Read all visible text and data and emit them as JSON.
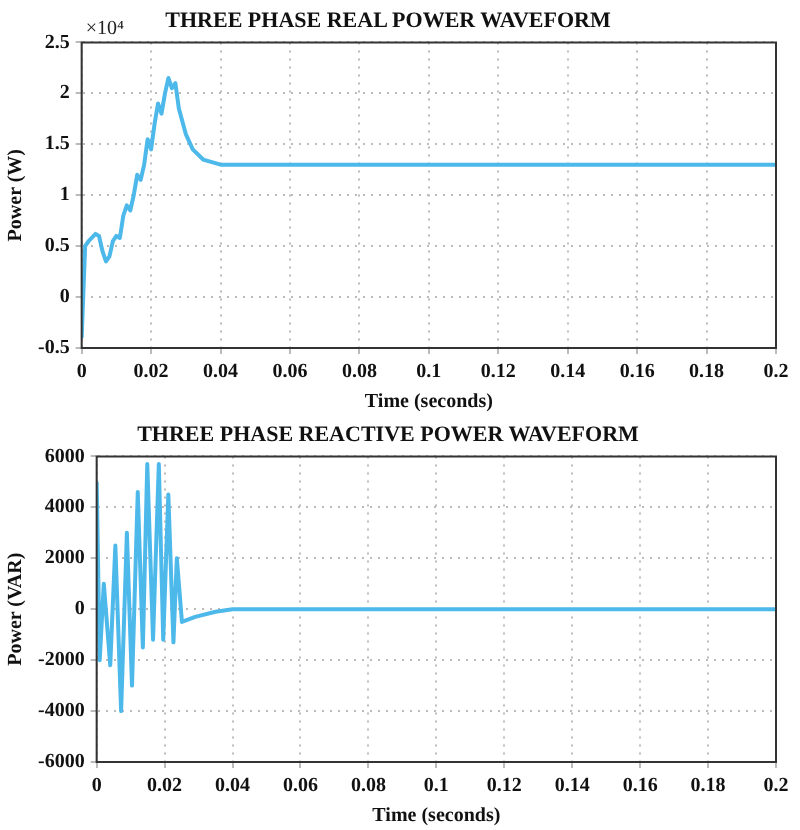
{
  "chart_data": [
    {
      "type": "line",
      "title": "THREE PHASE REAL POWER WAVEFORM",
      "xlabel": "Time (seconds)",
      "ylabel": "Power (W)",
      "annotations": [
        "×10⁴"
      ],
      "x": [
        0,
        0.001,
        0.002,
        0.004,
        0.005,
        0.006,
        0.007,
        0.008,
        0.009,
        0.01,
        0.011,
        0.012,
        0.013,
        0.014,
        0.015,
        0.016,
        0.017,
        0.018,
        0.019,
        0.02,
        0.021,
        0.022,
        0.023,
        0.024,
        0.025,
        0.026,
        0.027,
        0.028,
        0.03,
        0.032,
        0.035,
        0.04,
        0.2
      ],
      "series": [
        {
          "color": "#4db8ea",
          "values": [
            -0.4,
            0.5,
            0.55,
            0.62,
            0.6,
            0.45,
            0.35,
            0.4,
            0.55,
            0.6,
            0.58,
            0.8,
            0.9,
            0.85,
            1.0,
            1.2,
            1.15,
            1.3,
            1.55,
            1.45,
            1.7,
            1.9,
            1.8,
            2.0,
            2.15,
            2.05,
            2.1,
            1.85,
            1.6,
            1.45,
            1.35,
            1.3,
            1.3
          ]
        }
      ],
      "xlim": [
        0,
        0.2
      ],
      "xticks": [
        0,
        0.02,
        0.04,
        0.06,
        0.08,
        0.1,
        0.12,
        0.14,
        0.16,
        0.18,
        0.2
      ],
      "ylim": [
        -0.5,
        2.5
      ],
      "yticks": [
        -0.5,
        0,
        0.5,
        1,
        1.5,
        2,
        2.5
      ],
      "grid": true,
      "legend": false,
      "line_style": "solid"
    },
    {
      "type": "line",
      "title": "THREE PHASE REACTIVE POWER WAVEFORM",
      "xlabel": "Time (seconds)",
      "ylabel": "Power (VAR)",
      "x": [
        0,
        0.0009,
        0.0021,
        0.004,
        0.0055,
        0.0072,
        0.0089,
        0.0104,
        0.0121,
        0.0136,
        0.0149,
        0.0166,
        0.0183,
        0.0196,
        0.0211,
        0.0226,
        0.0236,
        0.0251,
        0.029,
        0.035,
        0.04,
        0.2
      ],
      "series": [
        {
          "color": "#4db8ea",
          "values": [
            5000,
            -2000,
            1000,
            -2200,
            2500,
            -4000,
            3000,
            -3000,
            4600,
            -1500,
            5700,
            -1200,
            5700,
            -1200,
            4500,
            -1300,
            2000,
            -500,
            -300,
            -100,
            0,
            0
          ]
        }
      ],
      "xlim": [
        0,
        0.2
      ],
      "xticks": [
        0,
        0.02,
        0.04,
        0.06,
        0.08,
        0.1,
        0.12,
        0.14,
        0.16,
        0.18,
        0.2
      ],
      "ylim": [
        -6000,
        6000
      ],
      "yticks": [
        -6000,
        -4000,
        -2000,
        0,
        2000,
        4000,
        6000
      ],
      "grid": true,
      "legend": false,
      "line_style": "solid"
    }
  ]
}
